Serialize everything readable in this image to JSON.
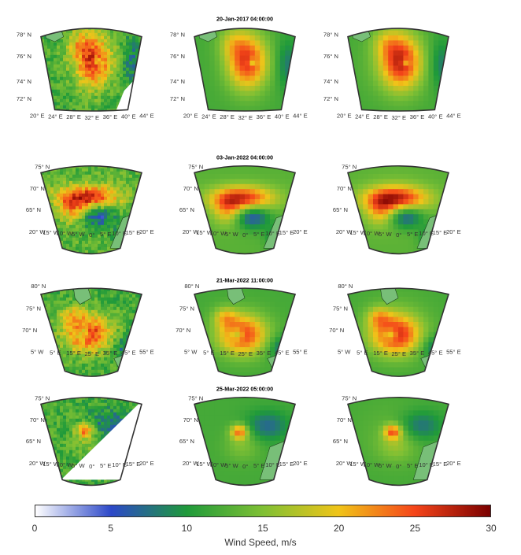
{
  "colors": {
    "land": "#78bf78",
    "coast": "#1a3a1a",
    "frame": "#333333"
  },
  "colormap": [
    "#ffffff",
    "#2c48c8",
    "#1f9a3a",
    "#7fc034",
    "#f0c419",
    "#f5451a",
    "#7a0000"
  ],
  "rows": [
    {
      "title": "20-Jan-2017 04:00:00",
      "scene": "a",
      "lat_labels": [
        "72° N",
        "74° N",
        "76° N",
        "78° N"
      ],
      "lon_labels": [
        "20° E",
        "24° E",
        "28° E",
        "32° E",
        "36° E",
        "40° E",
        "44° E"
      ]
    },
    {
      "title": "03-Jan-2022 04:00:00",
      "scene": "b",
      "lat_labels": [
        "65° N",
        "70° N",
        "75° N"
      ],
      "lon_labels": [
        "20° W",
        "15° W",
        "10° W",
        "5° W",
        "0°",
        "5° E",
        "10° E",
        "15° E",
        "20° E"
      ]
    },
    {
      "title": "21-Mar-2022 11:00:00",
      "scene": "c",
      "lat_labels": [
        "70° N",
        "75° N",
        "80° N"
      ],
      "lon_labels": [
        "5° W",
        "5° E",
        "15° E",
        "25° E",
        "35° E",
        "45° E",
        "55° E"
      ]
    },
    {
      "title": "25-Mar-2022 05:00:00",
      "scene": "d",
      "lat_labels": [
        "65° N",
        "70° N",
        "75° N"
      ],
      "lon_labels": [
        "20° W",
        "15° W",
        "10° W",
        "5° W",
        "0°",
        "5° E",
        "10° E",
        "15° E",
        "20° E"
      ]
    }
  ],
  "colorbar": {
    "min": 0,
    "max": 30,
    "ticks": [
      "0",
      "5",
      "10",
      "15",
      "20",
      "25",
      "30"
    ],
    "label": "Wind Speed, m/s"
  }
}
